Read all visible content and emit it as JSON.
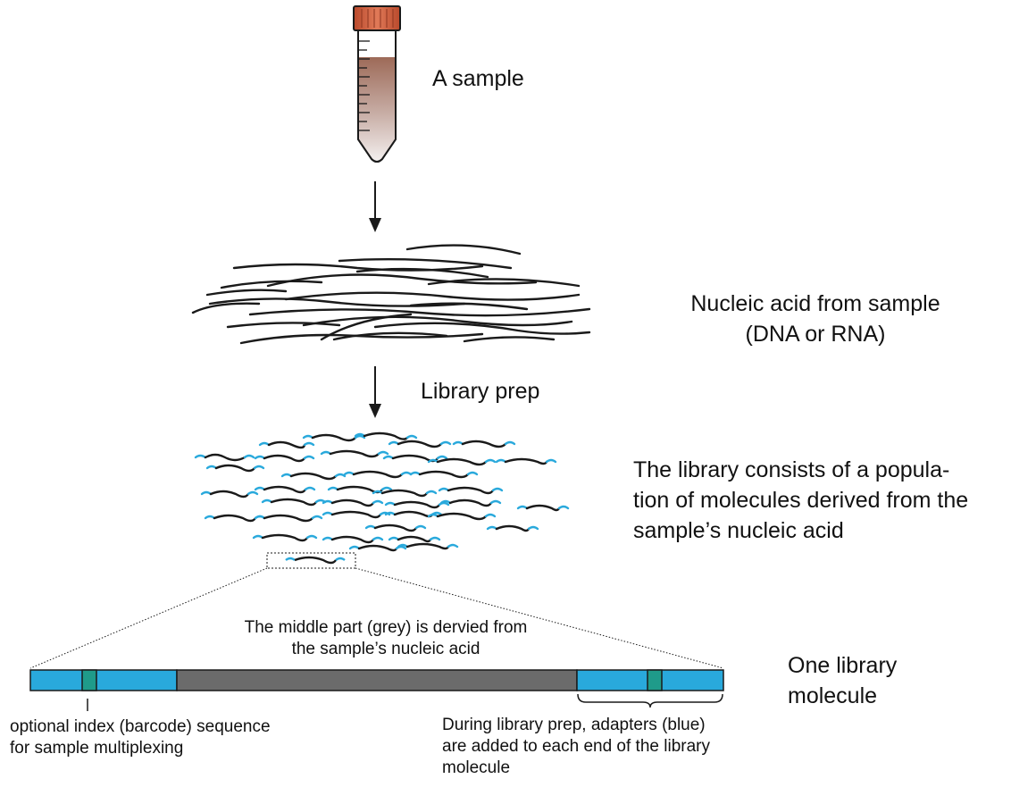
{
  "labels": {
    "sample": "A sample",
    "nucleic_acid": [
      "Nucleic acid from sample",
      "(DNA or RNA)"
    ],
    "library_prep": "Library prep",
    "library": [
      "The library consists of a popula-",
      "tion of molecules derived from the",
      "sample’s nucleic acid"
    ],
    "middle_part": [
      "The middle part (grey) is dervied from",
      "the sample’s nucleic acid"
    ],
    "one_molecule": [
      "One library",
      "molecule"
    ],
    "index": [
      "optional index (barcode) sequence",
      "for sample multiplexing"
    ],
    "adapters": [
      "During library prep, adapters (blue)",
      "are added to each end of the library",
      "molecule"
    ]
  },
  "colors": {
    "adapter_blue": "#29a9dc",
    "index_green": "#1f9b8a",
    "insert_grey": "#6b6b6b",
    "tube_cap": "#c8583a",
    "sample_liquid": "#a77a6a",
    "line": "#1a1a1a"
  }
}
